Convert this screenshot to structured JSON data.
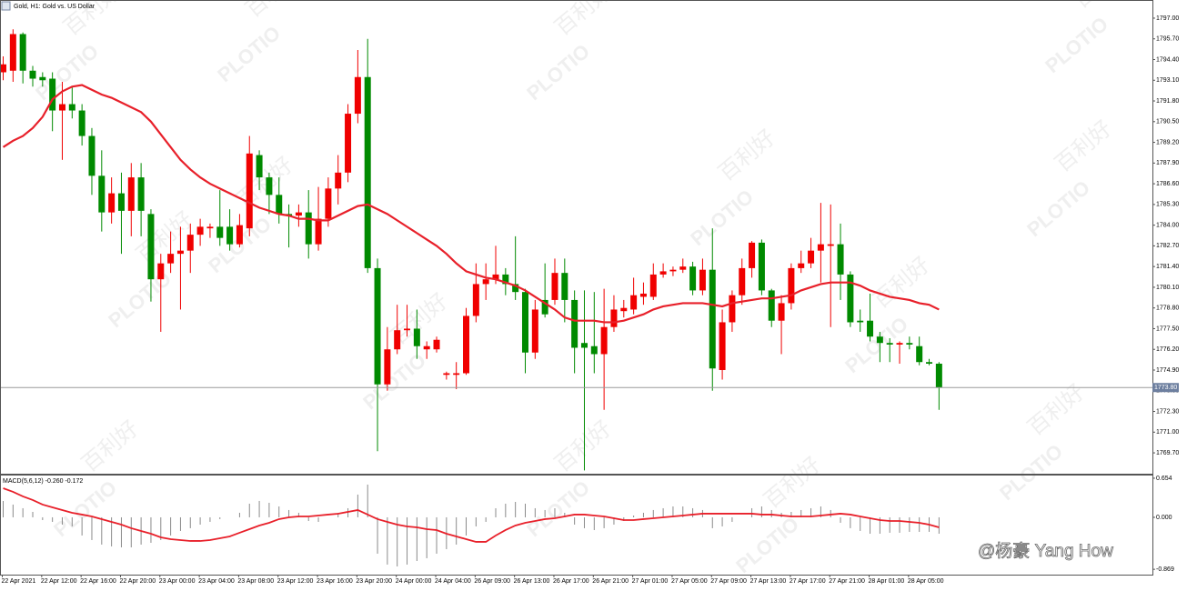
{
  "chart_data": [
    {
      "type": "candlestick",
      "title": "Gold, H1:  Gold vs. US Dollar",
      "categories": [
        "22 Apr 2021",
        null,
        null,
        null,
        "22 Apr 12:00",
        null,
        null,
        null,
        "22 Apr 16:00",
        null,
        null,
        null,
        "22 Apr 20:00",
        null,
        null,
        null,
        "23 Apr 00:00",
        null,
        null,
        null,
        "23 Apr 04:00",
        null,
        null,
        null,
        "23 Apr 08:00",
        null,
        null,
        null,
        "23 Apr 12:00",
        null,
        null,
        null,
        "23 Apr 16:00",
        null,
        null,
        null,
        "23 Apr 20:00",
        null,
        null,
        null,
        "24 Apr 00:00",
        null,
        null,
        null,
        "24 Apr 04:00",
        null,
        null,
        null,
        "26 Apr 09:00",
        null,
        null,
        null,
        "26 Apr 13:00",
        null,
        null,
        null,
        "26 Apr 17:00",
        null,
        null,
        null,
        "26 Apr 21:00",
        null,
        null,
        null,
        "27 Apr 01:00",
        null,
        null,
        null,
        "27 Apr 05:00",
        null,
        null,
        null,
        "27 Apr 09:00",
        null,
        null,
        null,
        "27 Apr 13:00",
        null,
        null,
        null,
        "27 Apr 17:00",
        null,
        null,
        null,
        "27 Apr 21:00",
        null,
        null,
        null,
        "28 Apr 01:00",
        null,
        null,
        null,
        "28 Apr 05:00",
        null,
        null,
        null
      ],
      "open": [
        1793.6,
        1793.7,
        1796.0,
        1793.7,
        1793.3,
        1793.2,
        1791.2,
        1791.6,
        1791.2,
        1789.6,
        1787.1,
        1784.8,
        1786.0,
        1784.9,
        1787.0,
        1784.7,
        1780.6,
        1781.6,
        1782.2,
        1782.4,
        1783.4,
        1783.8,
        1783.9,
        1783.9,
        1782.8,
        1783.8,
        1788.4,
        1787.0,
        1785.9,
        1784.7,
        1784.6,
        1784.8,
        1782.8,
        1784.4,
        1786.3,
        1787.3,
        1791.0,
        1793.3,
        1781.3,
        1774.0,
        1776.2,
        1777.4,
        1777.5,
        1776.2,
        1776.2,
        1774.6,
        1774.6,
        1774.7,
        1778.3,
        1780.3,
        1780.6,
        1780.9,
        1780.3,
        1779.8,
        1776.0,
        1779.3,
        1779.3,
        1781.0,
        1779.3,
        1776.6,
        1776.4,
        1775.9,
        1777.6,
        1778.6,
        1778.7,
        1779.5,
        1779.5,
        1780.9,
        1781.1,
        1781.2,
        1781.4,
        1779.9,
        1781.2,
        1774.9,
        1777.9,
        1779.6,
        1781.3,
        1782.9,
        1779.9,
        1778.0,
        1779.1,
        1781.3,
        1781.6,
        1782.4,
        1782.7,
        1782.8,
        1780.9,
        1778.0,
        1778.0,
        1777.0,
        1776.6,
        1776.5,
        1776.6,
        1776.4,
        1775.4,
        1775.3
      ],
      "high": [
        1794.6,
        1796.3,
        1796.1,
        1794.0,
        1793.6,
        1793.6,
        1793.0,
        1792.7,
        1791.6,
        1790.1,
        1788.7,
        1787.0,
        1787.3,
        1787.9,
        1787.9,
        1785.0,
        1782.2,
        1783.6,
        1783.9,
        1784.1,
        1784.4,
        1784.1,
        1786.2,
        1785.0,
        1784.7,
        1789.6,
        1788.7,
        1787.3,
        1787.0,
        1785.3,
        1785.3,
        1786.2,
        1786.4,
        1787.0,
        1788.4,
        1791.6,
        1795.0,
        1795.7,
        1781.9,
        1777.6,
        1779.0,
        1779.0,
        1778.7,
        1776.7,
        1777.0,
        1774.8,
        1775.4,
        1778.8,
        1781.6,
        1781.6,
        1782.7,
        1781.3,
        1783.3,
        1780.0,
        1779.3,
        1781.6,
        1781.9,
        1781.9,
        1779.9,
        1779.9,
        1779.8,
        1780.0,
        1779.6,
        1779.3,
        1780.7,
        1780.4,
        1781.6,
        1781.6,
        1781.4,
        1781.9,
        1781.7,
        1781.9,
        1783.8,
        1778.7,
        1779.9,
        1781.9,
        1783.0,
        1783.1,
        1780.0,
        1779.6,
        1781.6,
        1782.4,
        1783.2,
        1785.4,
        1785.3,
        1784.1,
        1781.1,
        1778.7,
        1779.7,
        1777.3,
        1776.9,
        1776.7,
        1777.0,
        1777.0,
        1775.6,
        1775.4
      ],
      "low": [
        1793.1,
        1793.0,
        1792.9,
        1792.7,
        1792.7,
        1789.9,
        1788.1,
        1790.7,
        1789.0,
        1785.9,
        1783.6,
        1784.1,
        1782.2,
        1783.3,
        1783.3,
        1779.2,
        1777.3,
        1781.0,
        1778.7,
        1781.0,
        1782.7,
        1783.2,
        1782.7,
        1782.4,
        1782.6,
        1783.3,
        1786.2,
        1784.7,
        1784.1,
        1782.6,
        1783.9,
        1781.9,
        1782.4,
        1783.9,
        1785.3,
        1786.7,
        1790.4,
        1781.0,
        1769.8,
        1773.6,
        1775.9,
        1777.0,
        1775.6,
        1775.6,
        1776.0,
        1774.3,
        1773.7,
        1774.6,
        1777.9,
        1779.3,
        1780.3,
        1779.6,
        1779.3,
        1774.7,
        1775.6,
        1778.2,
        1779.0,
        1777.9,
        1774.7,
        1768.6,
        1774.7,
        1772.4,
        1777.3,
        1778.2,
        1778.4,
        1779.0,
        1779.3,
        1780.7,
        1780.8,
        1781.0,
        1779.6,
        1779.6,
        1773.6,
        1774.3,
        1777.3,
        1779.0,
        1780.7,
        1779.6,
        1777.6,
        1775.9,
        1778.7,
        1781.0,
        1781.3,
        1780.4,
        1777.6,
        1779.3,
        1777.6,
        1777.3,
        1776.7,
        1775.4,
        1775.4,
        1775.3,
        1776.2,
        1775.2,
        1775.2,
        1772.4
      ],
      "close": [
        1794.1,
        1796.0,
        1793.7,
        1793.2,
        1793.1,
        1791.2,
        1791.6,
        1791.2,
        1789.6,
        1787.1,
        1784.8,
        1786.0,
        1784.9,
        1787.0,
        1784.9,
        1780.6,
        1781.6,
        1782.2,
        1782.4,
        1783.4,
        1783.9,
        1783.9,
        1783.2,
        1782.8,
        1784.0,
        1788.5,
        1787.0,
        1785.9,
        1784.7,
        1784.6,
        1784.8,
        1782.8,
        1784.4,
        1786.3,
        1787.3,
        1791.0,
        1793.3,
        1781.3,
        1774.0,
        1776.2,
        1777.4,
        1777.5,
        1776.4,
        1776.4,
        1776.8,
        1774.7,
        1774.7,
        1778.3,
        1780.3,
        1780.6,
        1780.9,
        1780.3,
        1779.8,
        1776.0,
        1778.7,
        1778.4,
        1781.0,
        1779.3,
        1776.3,
        1776.3,
        1775.9,
        1777.6,
        1778.7,
        1778.8,
        1779.6,
        1779.7,
        1780.9,
        1781.1,
        1781.2,
        1781.4,
        1779.9,
        1781.2,
        1775.0,
        1777.9,
        1779.6,
        1781.3,
        1782.9,
        1779.9,
        1778.0,
        1779.1,
        1781.3,
        1781.6,
        1782.4,
        1782.8,
        1782.8,
        1780.9,
        1777.9,
        1777.9,
        1777.0,
        1776.6,
        1776.5,
        1776.6,
        1776.5,
        1775.4,
        1775.3,
        1773.8
      ],
      "up_color": "#f00000",
      "down_color": "#008a00",
      "series": [
        {
          "color": "#e8202a",
          "values": [
            1788.9,
            1789.3,
            1789.6,
            1790.1,
            1790.8,
            1791.9,
            1792.4,
            1792.7,
            1792.8,
            1792.5,
            1792.2,
            1792.0,
            1791.7,
            1791.4,
            1791.1,
            1790.5,
            1789.7,
            1788.9,
            1788.1,
            1787.5,
            1787.0,
            1786.6,
            1786.3,
            1786.0,
            1785.7,
            1785.4,
            1785.1,
            1784.9,
            1784.7,
            1784.6,
            1784.4,
            1784.4,
            1784.3,
            1784.3,
            1784.6,
            1784.9,
            1785.2,
            1785.3,
            1785.0,
            1784.7,
            1784.3,
            1783.9,
            1783.5,
            1783.1,
            1782.7,
            1782.2,
            1781.6,
            1781.1,
            1780.9,
            1780.7,
            1780.6,
            1780.4,
            1780.2,
            1779.9,
            1779.5,
            1779.1,
            1778.7,
            1778.2,
            1778.0,
            1778.0,
            1778.0,
            1777.9,
            1777.9,
            1778.0,
            1778.2,
            1778.4,
            1778.7,
            1778.9,
            1779.0,
            1779.1,
            1779.1,
            1779.1,
            1779.0,
            1778.9,
            1779.1,
            1779.2,
            1779.3,
            1779.4,
            1779.4,
            1779.5,
            1779.6,
            1779.9,
            1780.1,
            1780.3,
            1780.4,
            1780.4,
            1780.4,
            1780.2,
            1779.9,
            1779.7,
            1779.5,
            1779.4,
            1779.3,
            1779.1,
            1779.0,
            1778.7
          ]
        }
      ],
      "last_price": {
        "value": 1773.8,
        "label": "1773.80"
      },
      "ylim": [
        1768.39,
        1798.14
      ],
      "yticks": [
        {
          "value": 1797.0,
          "label": "1797.00"
        },
        {
          "value": 1795.7,
          "label": "1795.70"
        },
        {
          "value": 1794.4,
          "label": "1794.40"
        },
        {
          "value": 1793.1,
          "label": "1793.10"
        },
        {
          "value": 1791.8,
          "label": "1791.80"
        },
        {
          "value": 1790.5,
          "label": "1790.50"
        },
        {
          "value": 1789.2,
          "label": "1789.20"
        },
        {
          "value": 1787.9,
          "label": "1787.90"
        },
        {
          "value": 1786.6,
          "label": "1786.60"
        },
        {
          "value": 1785.3,
          "label": "1785.30"
        },
        {
          "value": 1784.0,
          "label": "1784.00"
        },
        {
          "value": 1782.7,
          "label": "1782.70"
        },
        {
          "value": 1781.4,
          "label": "1781.40"
        },
        {
          "value": 1780.1,
          "label": "1780.10"
        },
        {
          "value": 1778.8,
          "label": "1778.80"
        },
        {
          "value": 1777.5,
          "label": "1777.50"
        },
        {
          "value": 1776.2,
          "label": "1776.20"
        },
        {
          "value": 1774.9,
          "label": "1774.90"
        },
        {
          "value": 1773.6,
          "label": "1773.60"
        },
        {
          "value": 1772.3,
          "label": "1772.30"
        },
        {
          "value": 1771.0,
          "label": "1771.00"
        },
        {
          "value": 1769.7,
          "label": "1769.70"
        }
      ],
      "grid": false
    },
    {
      "type": "macd",
      "title": "MACD(5,6,12) -0.260 -0.172",
      "histogram": {
        "color": "#8a8a8a",
        "values": [
          0.274,
          0.213,
          0.152,
          0.091,
          -0.046,
          -0.076,
          -0.122,
          -0.152,
          -0.304,
          -0.38,
          -0.456,
          -0.486,
          -0.502,
          -0.502,
          -0.456,
          -0.426,
          -0.38,
          -0.304,
          -0.228,
          -0.182,
          -0.122,
          -0.076,
          -0.03,
          0,
          0.076,
          0.228,
          0.274,
          0.243,
          0.182,
          0.122,
          0.076,
          -0.061,
          -0.076,
          0,
          0.076,
          0.152,
          0.38,
          0.547,
          -0.608,
          -0.79,
          -0.821,
          -0.79,
          -0.73,
          -0.684,
          -0.608,
          -0.532,
          -0.456,
          -0.304,
          -0.152,
          -0.076,
          0.152,
          0.228,
          0.258,
          0.228,
          0.152,
          0.122,
          0.152,
          0.076,
          -0.122,
          -0.182,
          -0.213,
          -0.182,
          -0.122,
          -0.061,
          0.03,
          0.076,
          0.122,
          0.152,
          0.182,
          0.182,
          0.152,
          0.122,
          -0.182,
          -0.152,
          -0.076,
          0,
          0.152,
          0.182,
          0.122,
          0.076,
          0.091,
          0.122,
          0.152,
          0.182,
          0.122,
          -0.091,
          -0.182,
          -0.228,
          -0.274,
          -0.274,
          -0.258,
          -0.258,
          -0.243,
          -0.243,
          -0.243,
          -0.274
        ]
      },
      "signal": {
        "color": "#e8202a",
        "values": [
          0.486,
          0.426,
          0.35,
          0.289,
          0.213,
          0.167,
          0.122,
          0.076,
          0.046,
          0.015,
          -0.03,
          -0.076,
          -0.122,
          -0.182,
          -0.228,
          -0.274,
          -0.334,
          -0.365,
          -0.38,
          -0.395,
          -0.395,
          -0.38,
          -0.35,
          -0.319,
          -0.258,
          -0.198,
          -0.137,
          -0.091,
          -0.03,
          0,
          0.015,
          0.015,
          0.03,
          0.046,
          0.061,
          0.091,
          0.122,
          0.046,
          -0.03,
          -0.076,
          -0.122,
          -0.152,
          -0.167,
          -0.198,
          -0.213,
          -0.274,
          -0.319,
          -0.365,
          -0.41,
          -0.41,
          -0.304,
          -0.213,
          -0.137,
          -0.091,
          -0.061,
          -0.03,
          -0.015,
          0.015,
          0.046,
          0.046,
          0.03,
          0.015,
          -0.015,
          -0.046,
          -0.046,
          -0.03,
          -0.015,
          0,
          0.015,
          0.03,
          0.046,
          0.061,
          0.061,
          0.061,
          0.061,
          0.061,
          0.061,
          0.046,
          0.046,
          0.03,
          0.015,
          0.015,
          0.015,
          0.03,
          0.046,
          0.061,
          0.046,
          0.015,
          -0.015,
          -0.046,
          -0.061,
          -0.061,
          -0.076,
          -0.091,
          -0.122,
          -0.167
        ]
      },
      "ylim": [
        -0.958,
        0.714
      ],
      "yticks": [
        0.654,
        {
          "value": 0,
          "label": "0.000"
        },
        -0.869
      ]
    }
  ],
  "watermark": {
    "brand": "PLOTIO",
    "name": "百利好"
  },
  "credit": "@杨豪 Yang How"
}
